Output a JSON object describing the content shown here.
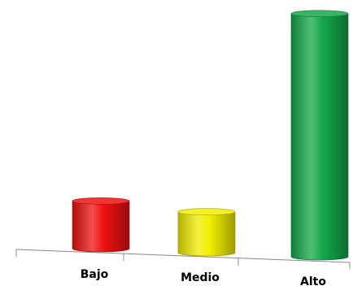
{
  "chart_data": {
    "type": "bar",
    "categories": [
      "Bajo",
      "Medio",
      "Alto"
    ],
    "values": [
      9.3,
      8.0,
      47.5
    ],
    "colors": [
      "#ee1111",
      "#f2ee00",
      "#14a84a"
    ],
    "title": "",
    "xlabel": "",
    "ylabel": "",
    "ylim": [
      0,
      50
    ],
    "grid": false,
    "legend": "none",
    "style": "3d-cylinder"
  }
}
